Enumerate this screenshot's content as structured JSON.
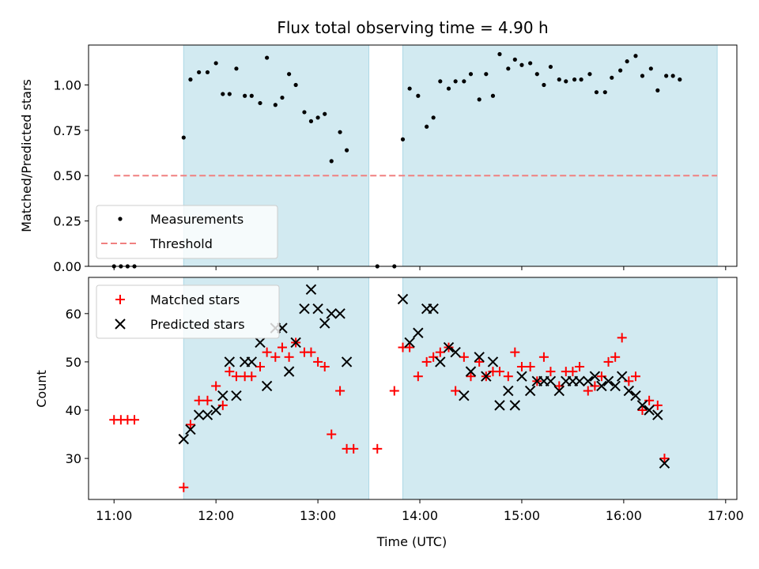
{
  "chart_data": {
    "title": "Flux total observing time = 4.90 h",
    "xlabel": "Time (UTC)",
    "x_unit": "hours UTC (decimal)",
    "xlim": [
      10.75,
      17.11
    ],
    "xticks": [
      11,
      12,
      13,
      14,
      15,
      16,
      17
    ],
    "xtick_labels": [
      "11:00",
      "12:00",
      "13:00",
      "14:00",
      "15:00",
      "16:00",
      "17:00"
    ],
    "observing_windows": [
      [
        11.683,
        13.5
      ],
      [
        13.833,
        16.917
      ]
    ],
    "window_color": "#add8e6",
    "panels": [
      {
        "id": "ratio",
        "type": "scatter",
        "ylabel": "Matched/Predicted stars",
        "ylim": [
          0.0,
          1.22
        ],
        "yticks": [
          0.0,
          0.25,
          0.5,
          0.75,
          1.0
        ],
        "ytick_labels": [
          "0.00",
          "0.25",
          "0.50",
          "0.75",
          "1.00"
        ],
        "legend_position": "lower-left",
        "threshold": {
          "name": "Threshold",
          "value": 0.5,
          "x_range": [
            11.0,
            16.917
          ],
          "color": "#f08080"
        },
        "series": [
          {
            "name": "Measurements",
            "marker": "dot",
            "color": "#000000",
            "points": [
              [
                11.0,
                0.0
              ],
              [
                11.067,
                0.0
              ],
              [
                11.133,
                0.0
              ],
              [
                11.2,
                0.0
              ],
              [
                11.683,
                0.71
              ],
              [
                11.75,
                1.03
              ],
              [
                11.833,
                1.07
              ],
              [
                11.917,
                1.07
              ],
              [
                12.0,
                1.12
              ],
              [
                12.067,
                0.95
              ],
              [
                12.133,
                0.95
              ],
              [
                12.2,
                1.09
              ],
              [
                12.283,
                0.94
              ],
              [
                12.35,
                0.94
              ],
              [
                12.433,
                0.9
              ],
              [
                12.5,
                1.15
              ],
              [
                12.583,
                0.89
              ],
              [
                12.65,
                0.93
              ],
              [
                12.717,
                1.06
              ],
              [
                12.783,
                1.0
              ],
              [
                12.867,
                0.85
              ],
              [
                12.933,
                0.8
              ],
              [
                13.0,
                0.82
              ],
              [
                13.067,
                0.84
              ],
              [
                13.133,
                0.58
              ],
              [
                13.217,
                0.74
              ],
              [
                13.283,
                0.64
              ],
              [
                13.583,
                0.0
              ],
              [
                13.75,
                0.0
              ],
              [
                13.833,
                0.7
              ],
              [
                13.9,
                0.98
              ],
              [
                13.983,
                0.94
              ],
              [
                14.067,
                0.77
              ],
              [
                14.133,
                0.82
              ],
              [
                14.2,
                1.02
              ],
              [
                14.283,
                0.98
              ],
              [
                14.35,
                1.02
              ],
              [
                14.433,
                1.02
              ],
              [
                14.5,
                1.06
              ],
              [
                14.583,
                0.92
              ],
              [
                14.65,
                1.06
              ],
              [
                14.717,
                0.94
              ],
              [
                14.783,
                1.17
              ],
              [
                14.867,
                1.09
              ],
              [
                14.933,
                1.14
              ],
              [
                15.0,
                1.11
              ],
              [
                15.083,
                1.12
              ],
              [
                15.15,
                1.06
              ],
              [
                15.217,
                1.0
              ],
              [
                15.283,
                1.1
              ],
              [
                15.367,
                1.03
              ],
              [
                15.433,
                1.02
              ],
              [
                15.517,
                1.03
              ],
              [
                15.583,
                1.03
              ],
              [
                15.667,
                1.06
              ],
              [
                15.733,
                0.96
              ],
              [
                15.817,
                0.96
              ],
              [
                15.883,
                1.04
              ],
              [
                15.967,
                1.08
              ],
              [
                16.033,
                1.13
              ],
              [
                16.117,
                1.16
              ],
              [
                16.183,
                1.05
              ],
              [
                16.267,
                1.09
              ],
              [
                16.333,
                0.97
              ],
              [
                16.417,
                1.05
              ],
              [
                16.483,
                1.05
              ],
              [
                16.55,
                1.03
              ]
            ]
          }
        ]
      },
      {
        "id": "counts",
        "type": "scatter",
        "ylabel": "Count",
        "ylim": [
          21.5,
          67.5
        ],
        "yticks": [
          30,
          40,
          50,
          60
        ],
        "ytick_labels": [
          "30",
          "40",
          "50",
          "60"
        ],
        "legend_position": "upper-left",
        "series": [
          {
            "name": "Matched stars",
            "marker": "plus",
            "color": "#ff0000",
            "points": [
              [
                11.0,
                38
              ],
              [
                11.067,
                38
              ],
              [
                11.133,
                38
              ],
              [
                11.2,
                38
              ],
              [
                11.683,
                24
              ],
              [
                11.75,
                37
              ],
              [
                11.833,
                42
              ],
              [
                11.917,
                42
              ],
              [
                12.0,
                45
              ],
              [
                12.067,
                41
              ],
              [
                12.133,
                48
              ],
              [
                12.2,
                47
              ],
              [
                12.283,
                47
              ],
              [
                12.35,
                47
              ],
              [
                12.433,
                49
              ],
              [
                12.5,
                52
              ],
              [
                12.583,
                51
              ],
              [
                12.65,
                53
              ],
              [
                12.717,
                51
              ],
              [
                12.783,
                54
              ],
              [
                12.867,
                52
              ],
              [
                12.933,
                52
              ],
              [
                13.0,
                50
              ],
              [
                13.067,
                49
              ],
              [
                13.133,
                35
              ],
              [
                13.217,
                44
              ],
              [
                13.283,
                32
              ],
              [
                13.35,
                32
              ],
              [
                13.583,
                32
              ],
              [
                13.75,
                44
              ],
              [
                13.833,
                53
              ],
              [
                13.9,
                53
              ],
              [
                13.983,
                47
              ],
              [
                14.067,
                50
              ],
              [
                14.133,
                51
              ],
              [
                14.2,
                52
              ],
              [
                14.283,
                53
              ],
              [
                14.35,
                44
              ],
              [
                14.433,
                51
              ],
              [
                14.5,
                47
              ],
              [
                14.583,
                50
              ],
              [
                14.65,
                47
              ],
              [
                14.717,
                48
              ],
              [
                14.783,
                48
              ],
              [
                14.867,
                47
              ],
              [
                14.933,
                52
              ],
              [
                15.0,
                49
              ],
              [
                15.083,
                49
              ],
              [
                15.15,
                46
              ],
              [
                15.217,
                51
              ],
              [
                15.283,
                48
              ],
              [
                15.367,
                45
              ],
              [
                15.433,
                48
              ],
              [
                15.5,
                48
              ],
              [
                15.567,
                49
              ],
              [
                15.65,
                44
              ],
              [
                15.717,
                45
              ],
              [
                15.783,
                47
              ],
              [
                15.85,
                50
              ],
              [
                15.917,
                51
              ],
              [
                15.983,
                55
              ],
              [
                16.05,
                46
              ],
              [
                16.117,
                47
              ],
              [
                16.183,
                40
              ],
              [
                16.25,
                42
              ],
              [
                16.333,
                41
              ],
              [
                16.4,
                30
              ]
            ]
          },
          {
            "name": "Predicted stars",
            "marker": "x",
            "color": "#000000",
            "points": [
              [
                11.683,
                34
              ],
              [
                11.75,
                36
              ],
              [
                11.833,
                39
              ],
              [
                11.917,
                39
              ],
              [
                12.0,
                40
              ],
              [
                12.067,
                43
              ],
              [
                12.133,
                50
              ],
              [
                12.2,
                43
              ],
              [
                12.283,
                50
              ],
              [
                12.35,
                50
              ],
              [
                12.433,
                54
              ],
              [
                12.5,
                45
              ],
              [
                12.583,
                57
              ],
              [
                12.65,
                57
              ],
              [
                12.717,
                48
              ],
              [
                12.783,
                54
              ],
              [
                12.867,
                61
              ],
              [
                12.933,
                65
              ],
              [
                13.0,
                61
              ],
              [
                13.067,
                58
              ],
              [
                13.133,
                60
              ],
              [
                13.217,
                60
              ],
              [
                13.283,
                50
              ],
              [
                13.833,
                63
              ],
              [
                13.9,
                54
              ],
              [
                13.983,
                56
              ],
              [
                14.067,
                61
              ],
              [
                14.133,
                61
              ],
              [
                14.2,
                50
              ],
              [
                14.283,
                53
              ],
              [
                14.35,
                52
              ],
              [
                14.433,
                43
              ],
              [
                14.5,
                48
              ],
              [
                14.583,
                51
              ],
              [
                14.65,
                47
              ],
              [
                14.717,
                50
              ],
              [
                14.783,
                41
              ],
              [
                14.867,
                44
              ],
              [
                14.933,
                41
              ],
              [
                15.0,
                47
              ],
              [
                15.083,
                44
              ],
              [
                15.15,
                46
              ],
              [
                15.217,
                46
              ],
              [
                15.283,
                46
              ],
              [
                15.367,
                44
              ],
              [
                15.433,
                46
              ],
              [
                15.5,
                46
              ],
              [
                15.567,
                46
              ],
              [
                15.65,
                46
              ],
              [
                15.717,
                47
              ],
              [
                15.783,
                45
              ],
              [
                15.85,
                46
              ],
              [
                15.917,
                45
              ],
              [
                15.983,
                47
              ],
              [
                16.05,
                44
              ],
              [
                16.117,
                43
              ],
              [
                16.183,
                41
              ],
              [
                16.25,
                40
              ],
              [
                16.333,
                39
              ],
              [
                16.4,
                29
              ]
            ]
          }
        ]
      }
    ]
  }
}
